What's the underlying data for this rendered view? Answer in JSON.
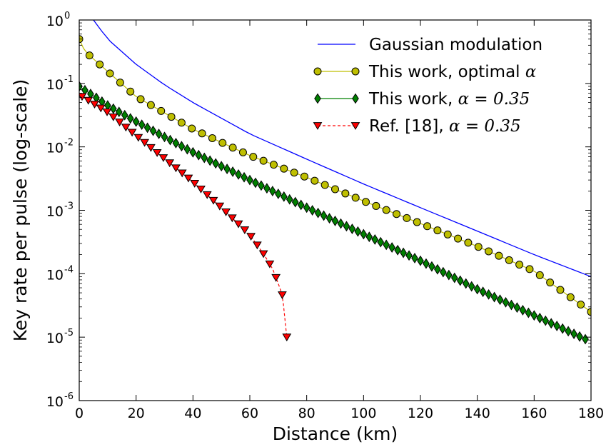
{
  "chart_data": {
    "type": "line",
    "xlabel": "Distance (km)",
    "ylabel": "Key rate per pulse (log-scale)",
    "xlim": [
      0,
      180
    ],
    "ylim": [
      1e-06,
      1
    ],
    "yscale": "log",
    "grid": false,
    "legend_position": "top-right",
    "x_ticks": [
      "0",
      "20",
      "40",
      "60",
      "80",
      "100",
      "120",
      "140",
      "160",
      "180"
    ],
    "y_ticks": [
      {
        "base": "10",
        "exp": "0"
      },
      {
        "base": "10",
        "exp": "-1"
      },
      {
        "base": "10",
        "exp": "-2"
      },
      {
        "base": "10",
        "exp": "-3"
      },
      {
        "base": "10",
        "exp": "-4"
      },
      {
        "base": "10",
        "exp": "-5"
      },
      {
        "base": "10",
        "exp": "-6"
      }
    ],
    "series": [
      {
        "name": "Gaussian modulation",
        "label_parts": [
          "Gaussian modulation",
          ""
        ],
        "color": "#0000ff",
        "marker": "none",
        "x": [
          5,
          10,
          20,
          30,
          40,
          60,
          80,
          100,
          120,
          140,
          160,
          180
        ],
        "y": [
          1.0,
          0.5,
          0.2,
          0.095,
          0.05,
          0.016,
          0.0064,
          0.0026,
          0.0011,
          0.00047,
          0.0002,
          9e-05
        ]
      },
      {
        "name": "This work, optimal α",
        "label_parts": [
          "This work, optimal ",
          "α"
        ],
        "color": "#bfbf00",
        "marker": "circle",
        "x": [
          0,
          2,
          20,
          40,
          60,
          80,
          100,
          120,
          140,
          160,
          180
        ],
        "y": [
          0.5,
          0.32,
          0.062,
          0.019,
          0.0073,
          0.0033,
          0.0014,
          0.00062,
          0.00027,
          0.00011,
          2.5e-05
        ]
      },
      {
        "name": "This work, α = 0.35",
        "label_parts": [
          "This work, ",
          "α = 0.35"
        ],
        "color": "#008000",
        "marker": "diamond",
        "x": [
          0,
          10,
          20,
          40,
          60,
          80,
          100,
          120,
          140,
          160,
          178
        ],
        "y": [
          0.09,
          0.045,
          0.025,
          0.0082,
          0.003,
          0.0011,
          0.00042,
          0.00016,
          5.7e-05,
          2.2e-05,
          9.3e-06
        ]
      },
      {
        "name": "Ref. [18], α = 0.35",
        "label_parts": [
          "Ref. [18], ",
          "α = 0.35"
        ],
        "color": "#ff0000",
        "marker": "triangle-down",
        "dashed": true,
        "x": [
          1,
          10,
          20,
          30,
          40,
          50,
          60,
          65,
          68,
          70,
          71.5,
          73
        ],
        "y": [
          0.062,
          0.035,
          0.015,
          0.0065,
          0.0028,
          0.0011,
          0.00041,
          0.0002,
          0.00012,
          7e-05,
          4.5e-05,
          1e-05
        ]
      }
    ]
  }
}
